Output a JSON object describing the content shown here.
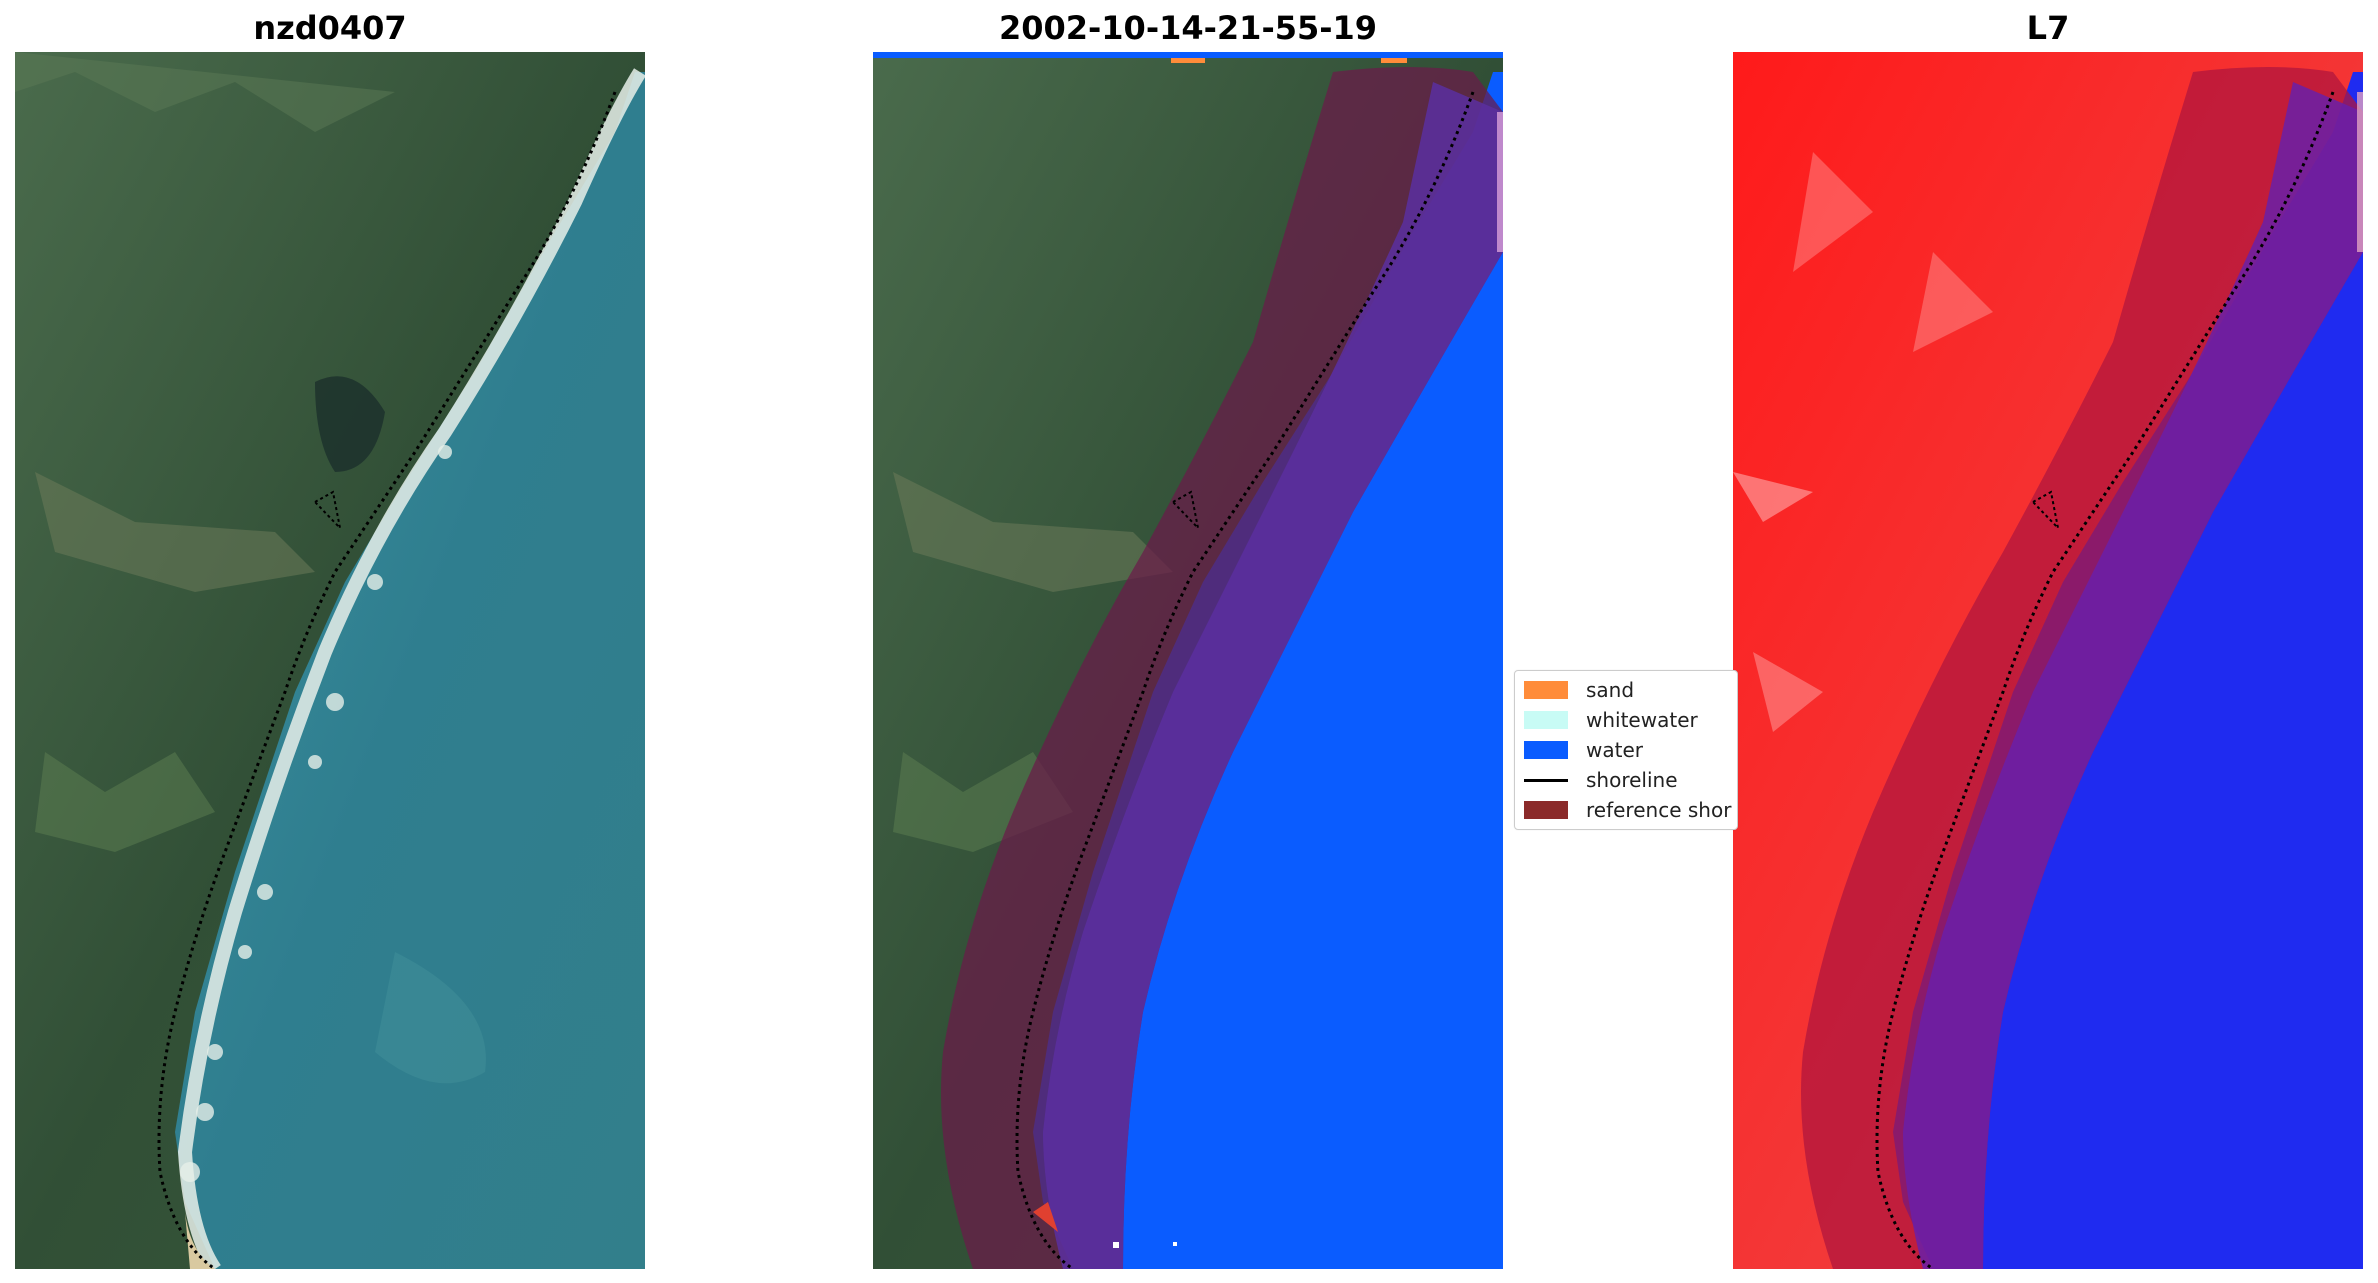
{
  "panels": {
    "left": {
      "title": "nzd0407",
      "kind": "rgb-image"
    },
    "middle": {
      "title": "2002-10-14-21-55-19",
      "kind": "classified-image"
    },
    "right": {
      "title": "L7",
      "kind": "index-image"
    }
  },
  "legend": {
    "items": [
      {
        "label": "sand",
        "color": "#ff8c3a",
        "type": "patch"
      },
      {
        "label": "whitewater",
        "color": "#c8fbf5",
        "type": "patch"
      },
      {
        "label": "water",
        "color": "#0a5cff",
        "type": "patch"
      },
      {
        "label": "shoreline",
        "color": "#000000",
        "type": "line"
      },
      {
        "label": "reference shor",
        "color": "#8b2a2a",
        "type": "patch"
      }
    ]
  },
  "colors": {
    "land_dark": "#2d4733",
    "land_mid": "#3f5c3a",
    "sea": "#2e7b8f",
    "surf": "#e8f0ec",
    "water_class": "#0a5cff",
    "buffer": "#6b1a4a",
    "index_land": "#ff1a1a",
    "index_water": "#1f2bf0",
    "shoreline": "#000000"
  }
}
